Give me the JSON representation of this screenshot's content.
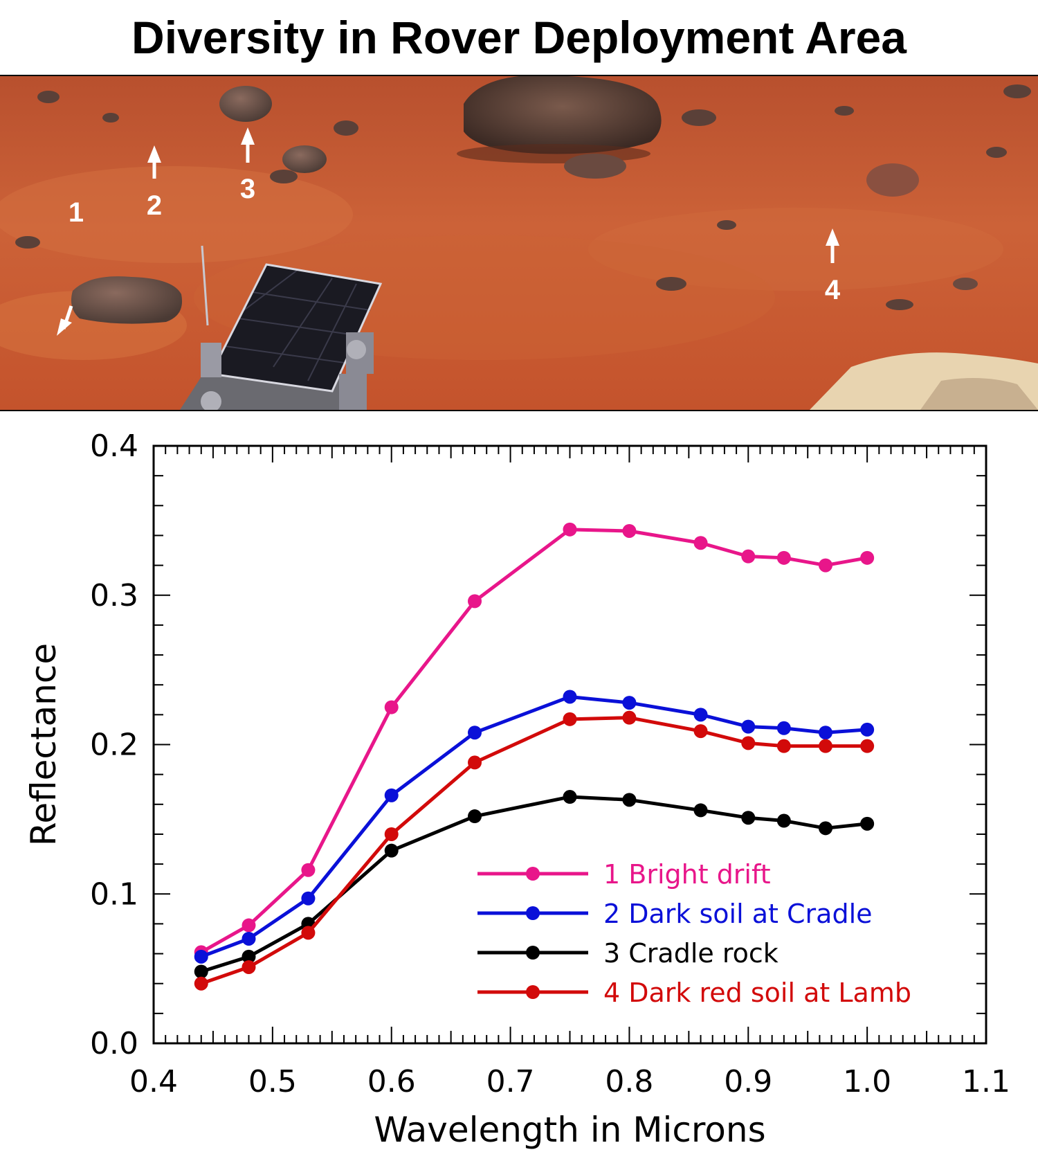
{
  "title": "Diversity in Rover Deployment Area",
  "photo": {
    "markers": [
      {
        "label": "1",
        "direction": "down-left"
      },
      {
        "label": "2",
        "direction": "up"
      },
      {
        "label": "3",
        "direction": "up"
      },
      {
        "label": "4",
        "direction": "up"
      }
    ]
  },
  "chart_data": {
    "type": "line",
    "xlabel": "Wavelength in Microns",
    "ylabel": "Reflectance",
    "xlim": [
      0.4,
      1.1
    ],
    "ylim": [
      0.0,
      0.4
    ],
    "xticks": [
      "0.4",
      "0.5",
      "0.6",
      "0.7",
      "0.8",
      "0.9",
      "1.0",
      "1.1"
    ],
    "yticks": [
      "0.0",
      "0.1",
      "0.2",
      "0.3",
      "0.4"
    ],
    "x": [
      0.44,
      0.48,
      0.53,
      0.6,
      0.67,
      0.75,
      0.8,
      0.86,
      0.9,
      0.93,
      0.965,
      1.0
    ],
    "legend_position": "bottom-right",
    "series": [
      {
        "name": "1 Bright drift",
        "color": "#e8168a",
        "values": [
          0.061,
          0.079,
          0.116,
          0.225,
          0.296,
          0.344,
          0.343,
          0.335,
          0.326,
          0.325,
          0.32,
          0.325
        ]
      },
      {
        "name": "2 Dark soil at Cradle",
        "color": "#0a10d8",
        "values": [
          0.058,
          0.07,
          0.097,
          0.166,
          0.208,
          0.232,
          0.228,
          0.22,
          0.212,
          0.211,
          0.208,
          0.21
        ]
      },
      {
        "name": "3 Cradle rock",
        "color": "#000000",
        "values": [
          0.048,
          0.058,
          0.08,
          0.129,
          0.152,
          0.165,
          0.163,
          0.156,
          0.151,
          0.149,
          0.144,
          0.147
        ]
      },
      {
        "name": "4 Dark red soil at Lamb",
        "color": "#d20a0a",
        "values": [
          0.04,
          0.051,
          0.074,
          0.14,
          0.188,
          0.217,
          0.218,
          0.209,
          0.201,
          0.199,
          0.199,
          0.199
        ]
      }
    ]
  }
}
